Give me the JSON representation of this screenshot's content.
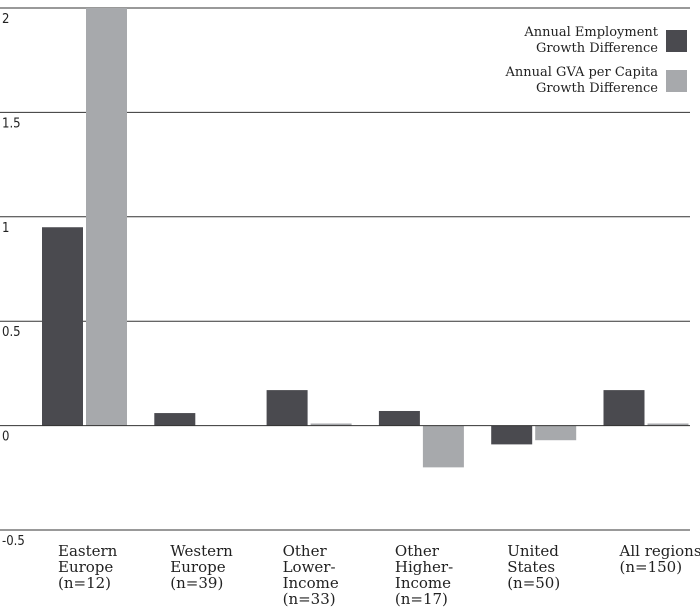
{
  "chart_data": {
    "type": "bar",
    "title": "",
    "xlabel": "",
    "ylabel": "",
    "ylim": [
      -0.5,
      2
    ],
    "yticks": [
      -0.5,
      0,
      0.5,
      1,
      1.5,
      2
    ],
    "ytick_labels": [
      "-0.5",
      "0",
      "0.5",
      "1",
      "1.5",
      "2"
    ],
    "grid": true,
    "legend_position": "top-right",
    "categories": [
      [
        "Eastern",
        "Europe",
        "(n=12)"
      ],
      [
        "Western",
        "Europe",
        "(n=39)"
      ],
      [
        "Other",
        "Lower-",
        "Income",
        "(n=33)"
      ],
      [
        "Other",
        "Higher-",
        "Income",
        "(n=17)"
      ],
      [
        "United",
        "States",
        "(n=50)"
      ],
      [
        "All regions",
        "(n=150)"
      ]
    ],
    "series": [
      {
        "name": [
          "Annual Employment",
          "Growth Difference"
        ],
        "color": "#4a4a4f",
        "values": [
          0.95,
          0.06,
          0.17,
          0.07,
          -0.09,
          0.17
        ]
      },
      {
        "name": [
          "Annual GVA per Capita",
          "Growth Difference"
        ],
        "color": "#a7a9ac",
        "values": [
          2.0,
          0.0,
          0.01,
          -0.2,
          -0.07,
          0.01
        ]
      }
    ]
  }
}
